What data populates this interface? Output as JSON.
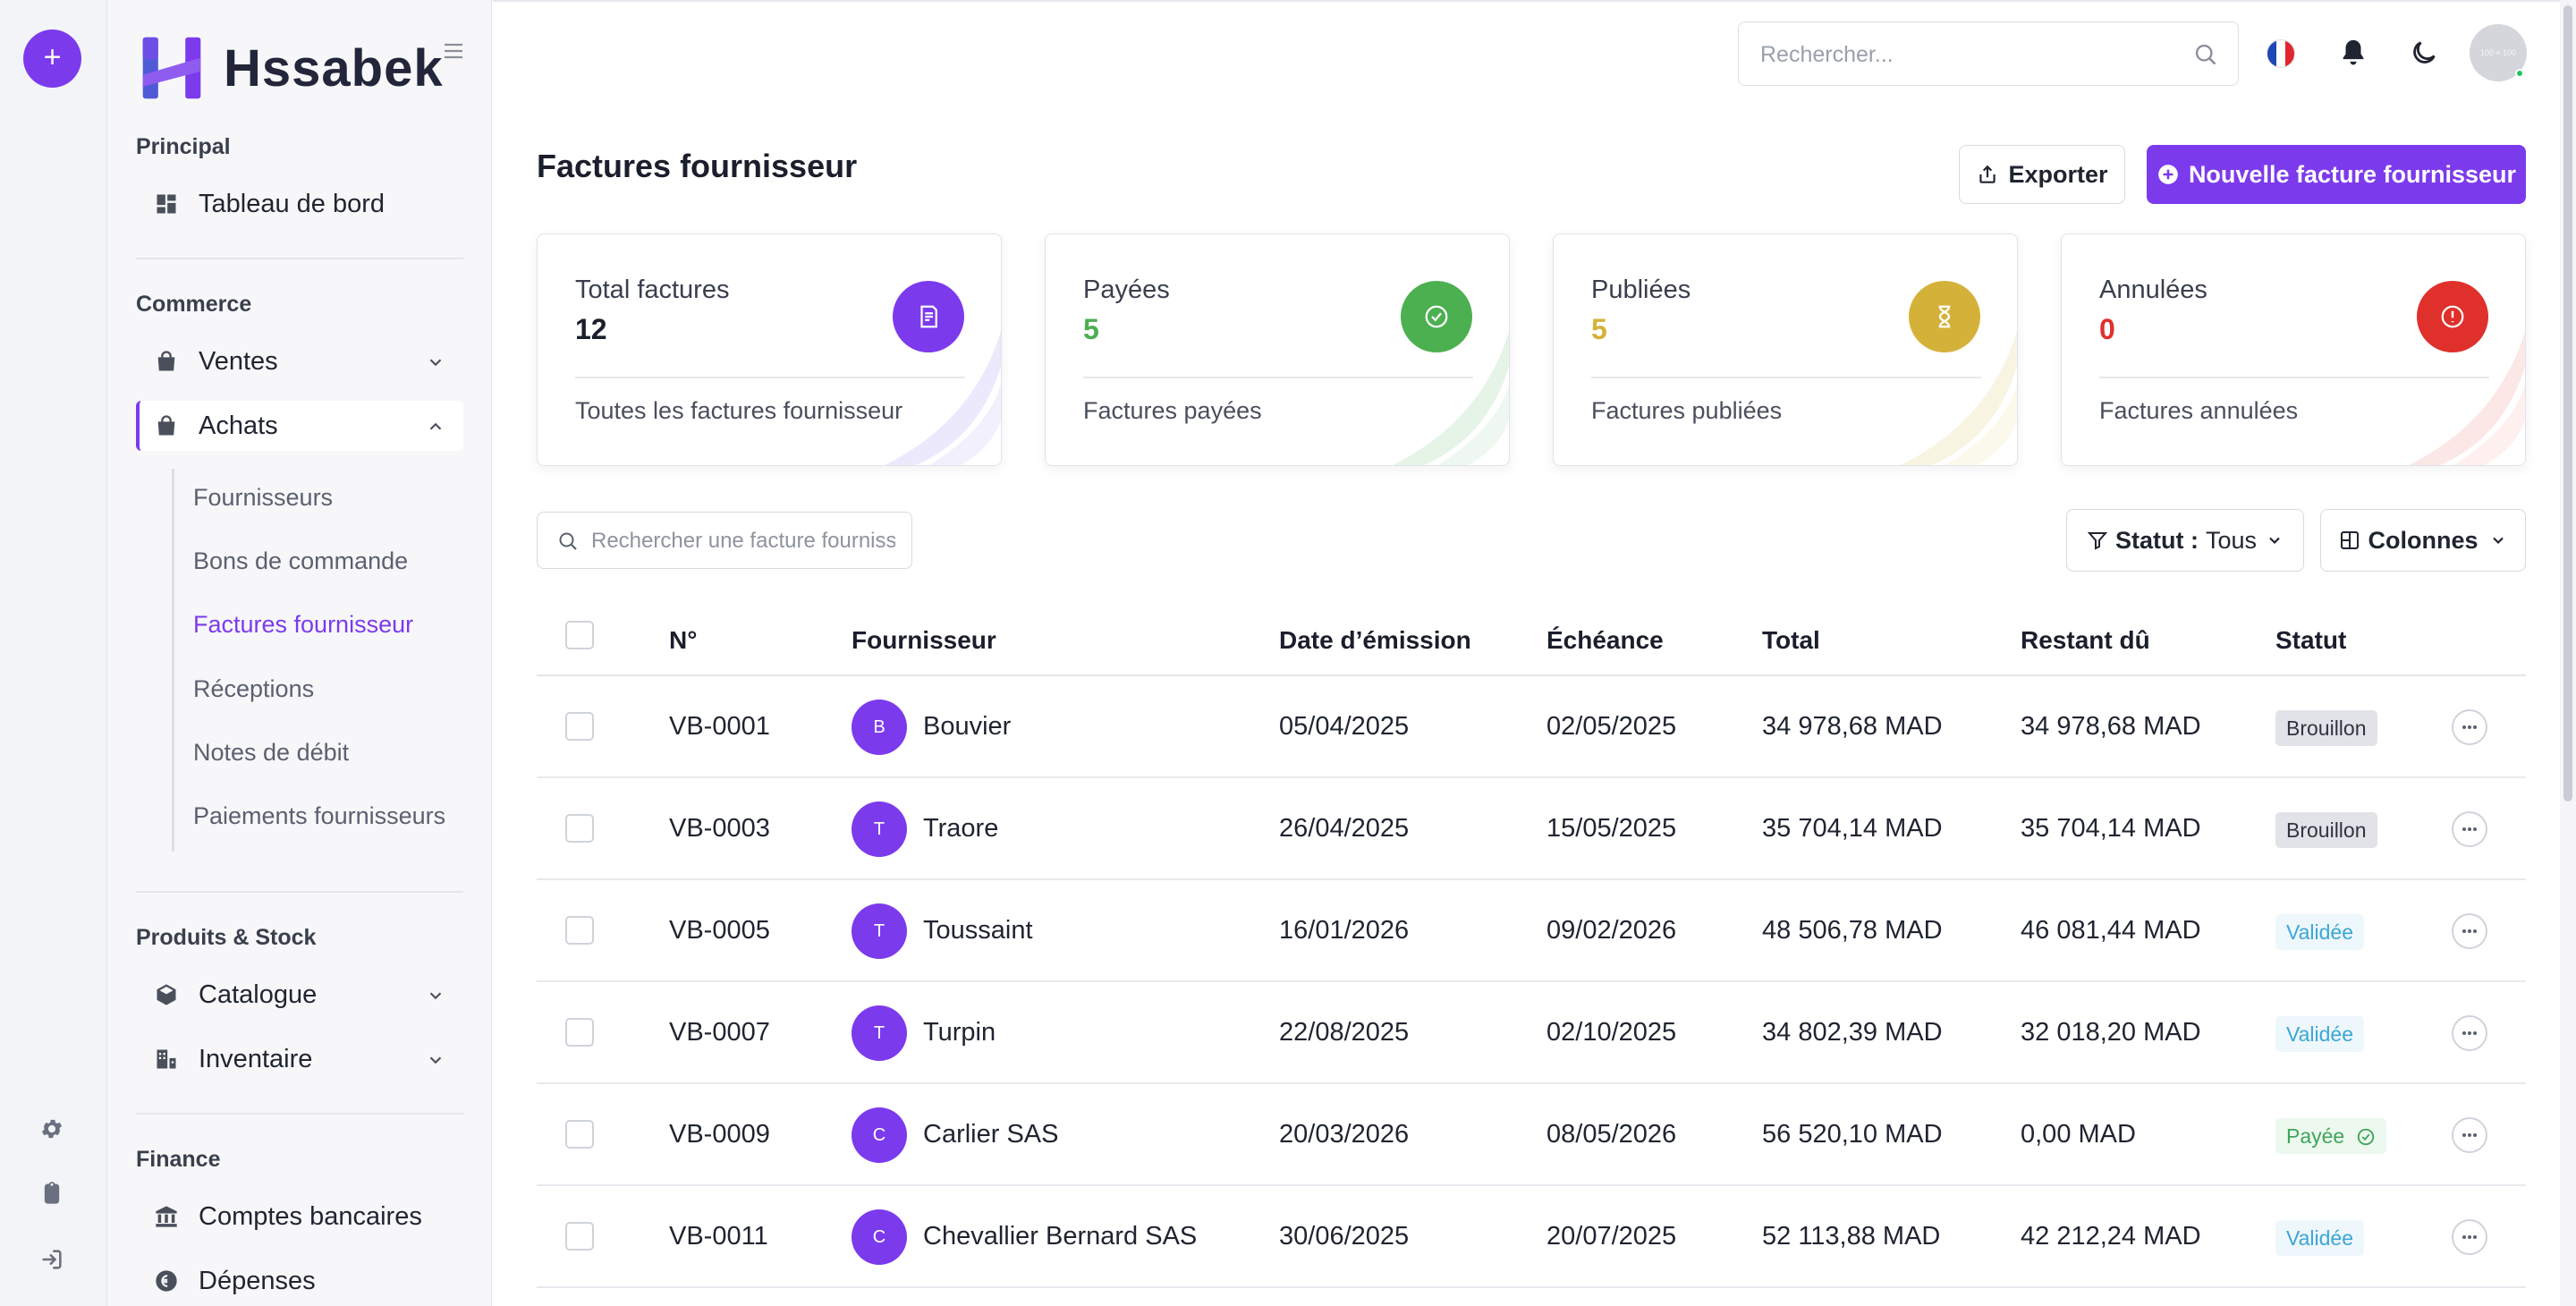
{
  "brand": {
    "name": "Hssabek"
  },
  "colors": {
    "accent": "#7c3aed",
    "success": "#4caf50",
    "warning": "#d4b23a",
    "danger": "#e0302c"
  },
  "rail": {
    "add_label": "+"
  },
  "sidebar": {
    "sections": [
      {
        "title": "Principal"
      },
      {
        "title": "Commerce"
      },
      {
        "title": "Produits & Stock"
      },
      {
        "title": "Finance"
      }
    ],
    "items": {
      "dashboard": "Tableau de bord",
      "ventes": "Ventes",
      "achats": "Achats",
      "catalogue": "Catalogue",
      "inventaire": "Inventaire",
      "comptes": "Comptes bancaires",
      "depenses": "Dépenses"
    },
    "achats_sub": [
      "Fournisseurs",
      "Bons de commande",
      "Factures fournisseur",
      "Réceptions",
      "Notes de débit",
      "Paiements fournisseurs"
    ]
  },
  "topbar": {
    "search_placeholder": "Rechercher...",
    "avatar_text": "100 × 100"
  },
  "page": {
    "title": "Factures fournisseur",
    "export_label": "Exporter",
    "new_label": "Nouvelle facture fournisseur"
  },
  "cards": [
    {
      "label": "Total factures",
      "value": "12",
      "foot": "Toutes les factures fournisseur"
    },
    {
      "label": "Payées",
      "value": "5",
      "foot": "Factures payées"
    },
    {
      "label": "Publiées",
      "value": "5",
      "foot": "Factures publiées"
    },
    {
      "label": "Annulées",
      "value": "0",
      "foot": "Factures annulées"
    }
  ],
  "toolbar": {
    "search_placeholder": "Rechercher une facture fournisseur",
    "status_key": "Statut :",
    "status_value": "Tous",
    "columns_label": "Colonnes"
  },
  "table": {
    "headers": [
      "N°",
      "Fournisseur",
      "Date d’émission",
      "Échéance",
      "Total",
      "Restant dû",
      "Statut"
    ],
    "rows": [
      {
        "num": "VB-0001",
        "initial": "B",
        "supplier": "Bouvier",
        "issued": "05/04/2025",
        "due": "02/05/2025",
        "total": "34 978,68 MAD",
        "remaining": "34 978,68 MAD",
        "status": "Brouillon"
      },
      {
        "num": "VB-0003",
        "initial": "T",
        "supplier": "Traore",
        "issued": "26/04/2025",
        "due": "15/05/2025",
        "total": "35 704,14 MAD",
        "remaining": "35 704,14 MAD",
        "status": "Brouillon"
      },
      {
        "num": "VB-0005",
        "initial": "T",
        "supplier": "Toussaint",
        "issued": "16/01/2026",
        "due": "09/02/2026",
        "total": "48 506,78 MAD",
        "remaining": "46 081,44 MAD",
        "status": "Validée"
      },
      {
        "num": "VB-0007",
        "initial": "T",
        "supplier": "Turpin",
        "issued": "22/08/2025",
        "due": "02/10/2025",
        "total": "34 802,39 MAD",
        "remaining": "32 018,20 MAD",
        "status": "Validée"
      },
      {
        "num": "VB-0009",
        "initial": "C",
        "supplier": "Carlier SAS",
        "issued": "20/03/2026",
        "due": "08/05/2026",
        "total": "56 520,10 MAD",
        "remaining": "0,00 MAD",
        "status": "Payée"
      },
      {
        "num": "VB-0011",
        "initial": "C",
        "supplier": "Chevallier Bernard SAS",
        "issued": "30/06/2025",
        "due": "20/07/2025",
        "total": "52 113,88 MAD",
        "remaining": "42 212,24 MAD",
        "status": "Validée"
      }
    ]
  }
}
